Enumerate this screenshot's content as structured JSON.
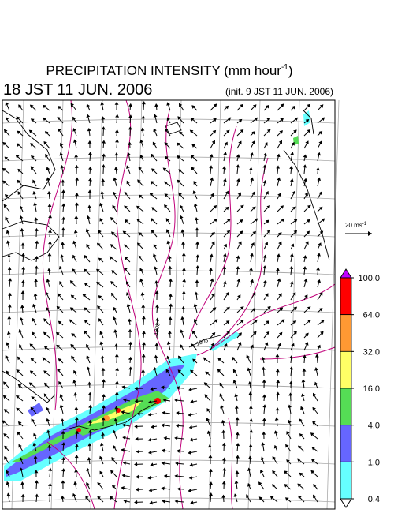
{
  "header": {
    "title": {
      "text": "PRECIPITATION INTENSITY (mm hour",
      "superscript": "-1",
      "suffix": ")"
    },
    "valid_time": "18 JST 11 JUN. 2006",
    "init_time": "(init. 9 JST 11 JUN. 2006)"
  },
  "wind_scale": {
    "text": "20 ms",
    "superscript": "-1"
  },
  "contour_labels": [
    "1008",
    "1008"
  ],
  "colorbar": {
    "levels": [
      {
        "value": 100,
        "label": "100.0"
      },
      {
        "value": 64,
        "label": "64.0"
      },
      {
        "value": 32,
        "label": "32.0"
      },
      {
        "value": 16,
        "label": "16.0"
      },
      {
        "value": 4,
        "label": "4.0"
      },
      {
        "value": 1,
        "label": "1.0"
      },
      {
        "value": 0.4,
        "label": "0.4"
      }
    ],
    "colors": [
      "#ff0000",
      "#ff9933",
      "#ffff66",
      "#55dd55",
      "#6666ff",
      "#66ffff"
    ],
    "over_color": "#c000ff",
    "under_color": "#ffffff"
  }
}
